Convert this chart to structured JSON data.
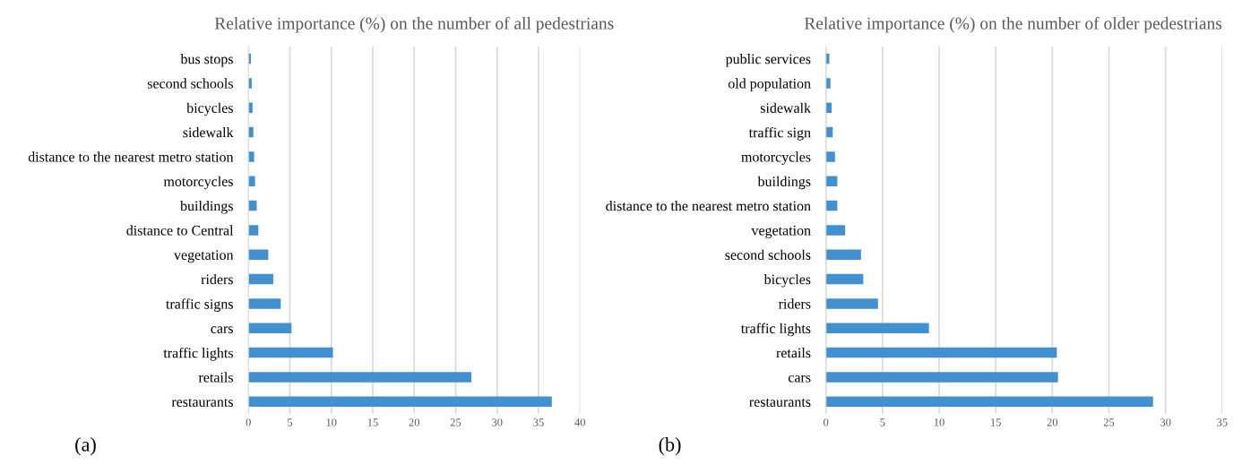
{
  "chart_data": [
    {
      "type": "bar",
      "orientation": "horizontal",
      "title": "Relative importance (%) on the number of all pedestrians",
      "categories": [
        "bus stops",
        "second schools",
        "bicycles",
        "sidewalk",
        "distance to the nearest metro station",
        "motorcycles",
        "buildings",
        "distance to Central",
        "vegetation",
        "riders",
        "traffic signs",
        "cars",
        "traffic lights",
        "retails",
        "restaurants"
      ],
      "values": [
        0.3,
        0.4,
        0.5,
        0.6,
        0.7,
        0.8,
        1.0,
        1.2,
        2.4,
        3.0,
        3.9,
        5.2,
        10.2,
        26.9,
        36.6
      ],
      "color": "#4190d0",
      "xlim": [
        0,
        40
      ],
      "xticks": [
        0,
        5,
        10,
        15,
        20,
        25,
        30,
        35,
        40
      ],
      "grid": "x",
      "annotations": [
        "(a)"
      ]
    },
    {
      "type": "bar",
      "orientation": "horizontal",
      "title": "Relative importance (%) on the number of older pedestrians",
      "categories": [
        "public services",
        "old population",
        "sidewalk",
        "traffic sign",
        "motorcycles",
        "buildings",
        "distance to the nearest metro station",
        "vegetation",
        "second schools",
        "bicycles",
        "riders",
        "traffic lights",
        "retails",
        "cars",
        "restaurants"
      ],
      "values": [
        0.3,
        0.4,
        0.5,
        0.6,
        0.8,
        1.0,
        1.0,
        1.7,
        3.1,
        3.3,
        4.6,
        9.1,
        20.4,
        20.5,
        28.9
      ],
      "color": "#4190d0",
      "xlim": [
        0,
        35
      ],
      "xticks": [
        0,
        5,
        10,
        15,
        20,
        25,
        30,
        35
      ],
      "grid": "x",
      "annotations": [
        "(b)"
      ]
    }
  ]
}
